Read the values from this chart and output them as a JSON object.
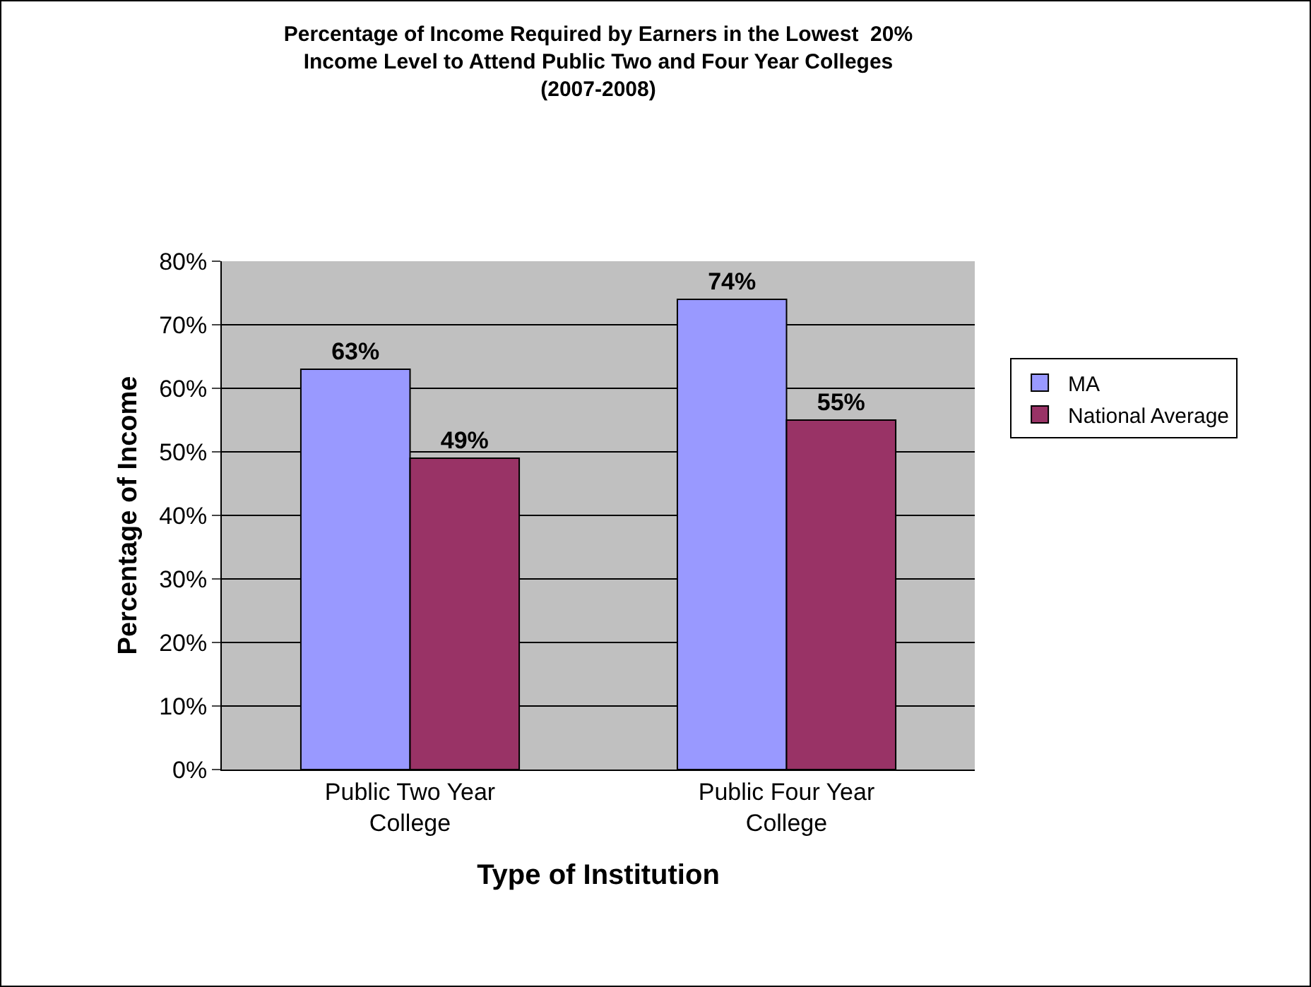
{
  "chart_data": {
    "type": "bar",
    "title": "Percentage of Income Required by Earners in the Lowest  20%\nIncome Level to Attend Public Two and Four Year Colleges\n(2007-2008)",
    "xlabel": "Type of Institution",
    "ylabel": "Percentage of Income",
    "categories": [
      "Public Two Year College",
      "Public Four Year College"
    ],
    "series": [
      {
        "name": "MA",
        "color": "#9999ff",
        "values": [
          63,
          74
        ],
        "value_labels": [
          "63%",
          "74%"
        ]
      },
      {
        "name": "National Average",
        "color": "#993366",
        "values": [
          49,
          55
        ],
        "value_labels": [
          "49%",
          "55%"
        ]
      }
    ],
    "ylim": [
      0,
      80
    ],
    "yticks": [
      {
        "value": 0,
        "label": "0%"
      },
      {
        "value": 10,
        "label": "10%"
      },
      {
        "value": 20,
        "label": "20%"
      },
      {
        "value": 30,
        "label": "30%"
      },
      {
        "value": 40,
        "label": "40%"
      },
      {
        "value": 50,
        "label": "50%"
      },
      {
        "value": 60,
        "label": "60%"
      },
      {
        "value": 70,
        "label": "70%"
      },
      {
        "value": 80,
        "label": "80%"
      }
    ],
    "grid": "y",
    "legend": "right"
  }
}
